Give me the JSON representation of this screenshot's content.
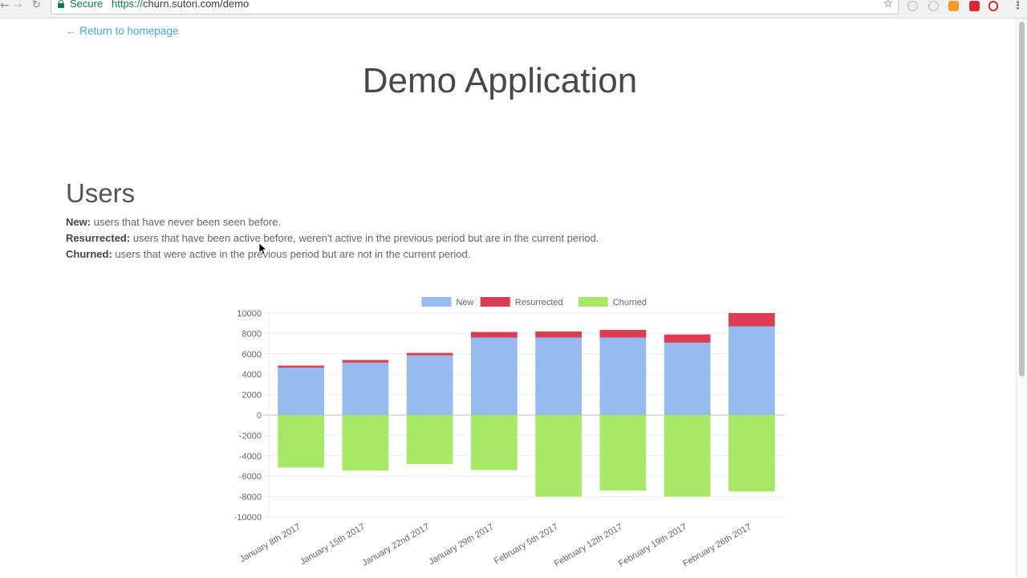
{
  "browser": {
    "secure_label": "Secure",
    "url_scheme": "https://",
    "url_rest": "churn.sutori.com/demo",
    "icons": [
      "back-icon",
      "forward-icon",
      "reload-icon",
      "bookmark-star-icon",
      "menu-icon"
    ]
  },
  "page": {
    "back_link": "← Return to homepage",
    "title": "Demo Application",
    "section_title": "Users",
    "definitions": [
      {
        "term": "New:",
        "text": " users that have never been seen before."
      },
      {
        "term": "Resurrected:",
        "text": " users that have been active before, weren't active in the previous period but are in the current period."
      },
      {
        "term": "Churned:",
        "text": " users that were active in the previous period but are not in the current period."
      }
    ]
  },
  "chart_data": {
    "type": "bar",
    "stacked": true,
    "title": "",
    "xlabel": "",
    "ylabel": "",
    "ylim": [
      -10000,
      10000
    ],
    "y_ticks": [
      10000,
      8000,
      6000,
      4000,
      2000,
      0,
      -2000,
      -4000,
      -6000,
      -8000,
      -10000
    ],
    "grid": true,
    "legend_position": "top",
    "categories": [
      "January 8th 2017",
      "January 15th 2017",
      "January 22nd 2017",
      "January 29th 2017",
      "February 5th 2017",
      "February 12th 2017",
      "February 19th 2017",
      "February 26th 2017"
    ],
    "series": [
      {
        "name": "New",
        "color": "#97bbef",
        "values": [
          4650,
          5150,
          5850,
          7600,
          7600,
          7600,
          7100,
          8700
        ]
      },
      {
        "name": "Resurrected",
        "color": "#dc3d55",
        "values": [
          200,
          250,
          250,
          550,
          600,
          750,
          800,
          1300
        ]
      },
      {
        "name": "Churned",
        "color": "#a8e866",
        "values": [
          -5150,
          -5450,
          -4800,
          -5400,
          -8000,
          -7400,
          -8000,
          -7500
        ]
      }
    ]
  }
}
